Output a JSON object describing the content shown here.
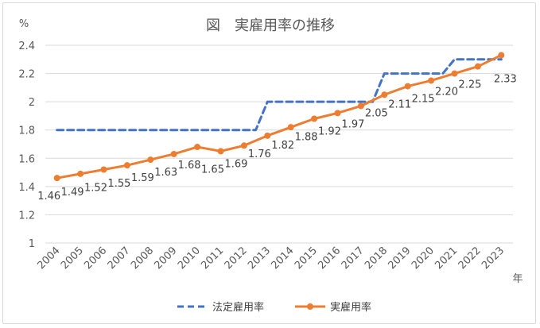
{
  "chart_data": {
    "type": "line",
    "title": "図　実雇用率の推移",
    "ylabel": "%",
    "xlabel": "年",
    "ylim": [
      1,
      2.4
    ],
    "yticks": [
      "1",
      "1.2",
      "1.4",
      "1.6",
      "1.8",
      "2",
      "2.2",
      "2.4"
    ],
    "x": [
      "2004",
      "2005",
      "2006",
      "2007",
      "2008",
      "2009",
      "2010",
      "2011",
      "2012",
      "2013",
      "2014",
      "2015",
      "2016",
      "2017",
      "2018",
      "2019",
      "2020",
      "2021",
      "2022",
      "2023"
    ],
    "grid": true,
    "legend_position": "bottom",
    "series": [
      {
        "name": "法定雇用率",
        "color": "#4472c4",
        "style": "dashed",
        "values": [
          1.8,
          1.8,
          1.8,
          1.8,
          1.8,
          1.8,
          1.8,
          1.8,
          1.8,
          2.0,
          2.0,
          2.0,
          2.0,
          2.0,
          2.2,
          2.2,
          2.2,
          2.3,
          2.3,
          2.3
        ]
      },
      {
        "name": "実雇用率",
        "color": "#ed7d31",
        "style": "solid-markers",
        "values": [
          1.46,
          1.49,
          1.52,
          1.55,
          1.59,
          1.63,
          1.68,
          1.65,
          1.69,
          1.76,
          1.82,
          1.88,
          1.92,
          1.97,
          2.05,
          2.11,
          2.15,
          2.2,
          2.25,
          2.33
        ],
        "data_labels": [
          "1.46",
          "1.49",
          "1.52",
          "1.55",
          "1.59",
          "1.63",
          "1.68",
          "1.65",
          "1.69",
          "1.76",
          "1.82",
          "1.88",
          "1.92",
          "1.97",
          "2.05",
          "2.11",
          "2.15",
          "2.20",
          "2.25",
          "2.33"
        ]
      }
    ]
  }
}
